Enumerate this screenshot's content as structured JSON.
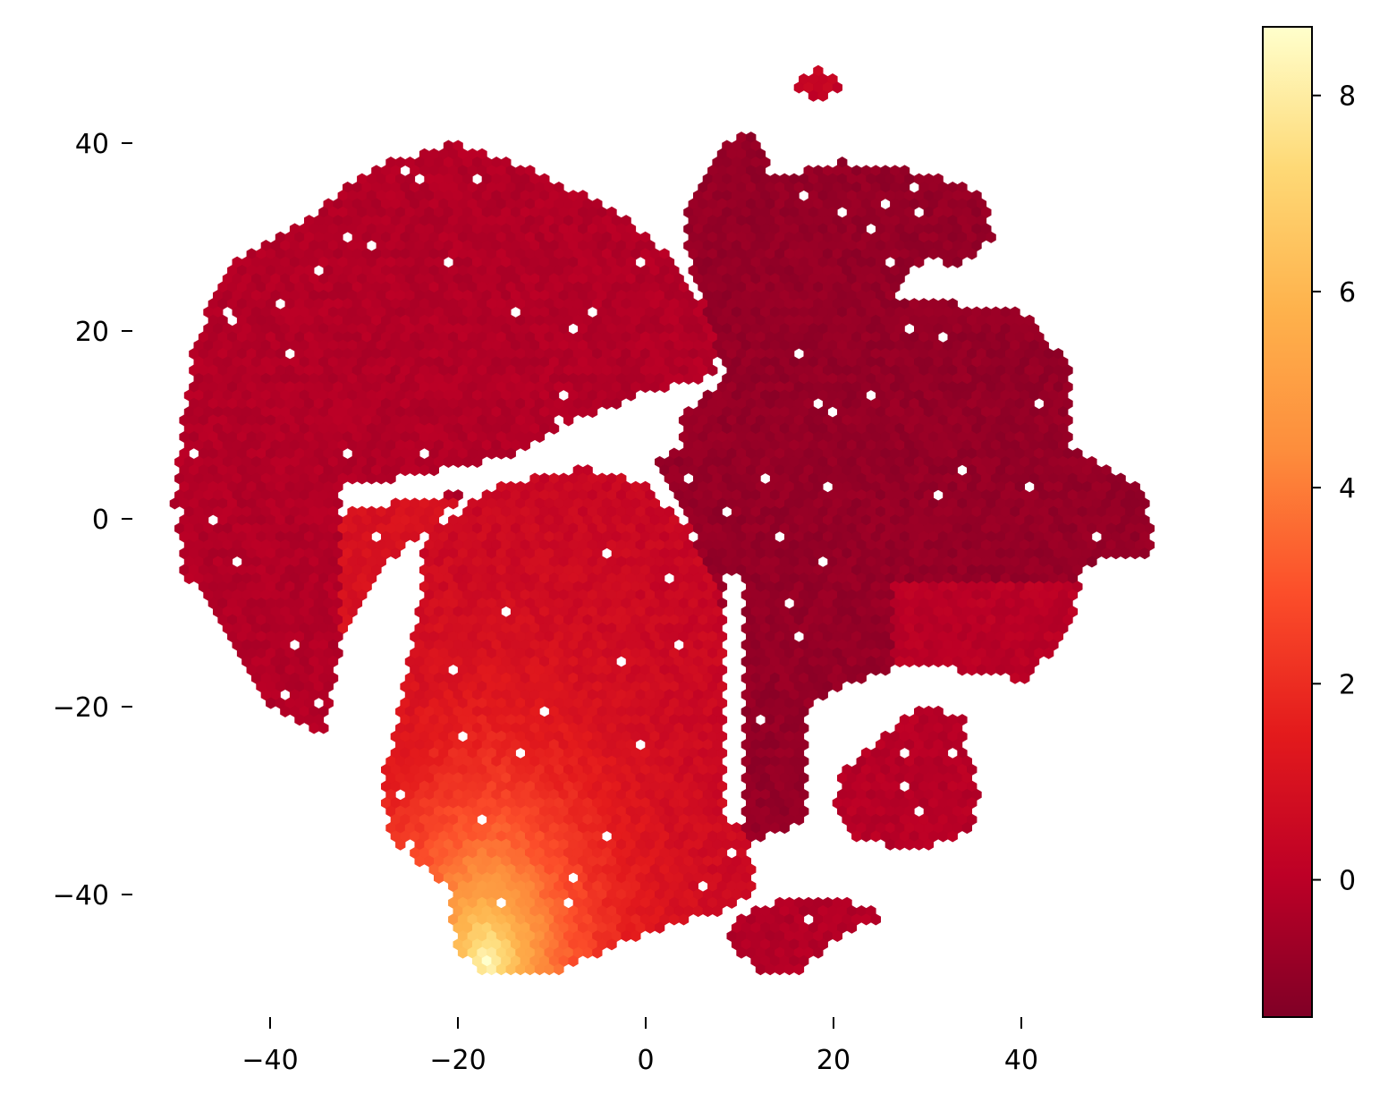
{
  "chart_data": {
    "type": "heatmap",
    "subtype": "hexbin embedding (t-SNE style)",
    "title": "",
    "xlabel": "",
    "ylabel": "",
    "xlim": [
      -58,
      56
    ],
    "ylim": [
      -54,
      53
    ],
    "x_ticks": [
      -40,
      -20,
      0,
      20,
      40
    ],
    "x_tick_labels": [
      "−40",
      "−20",
      "0",
      "20",
      "40"
    ],
    "y_ticks": [
      -40,
      -20,
      0,
      20,
      40
    ],
    "y_tick_labels": [
      "−40",
      "−20",
      "0",
      "20",
      "40"
    ],
    "grid": false,
    "legend": "none",
    "colorbar": {
      "position": "right",
      "min": -1.4,
      "max": 8.7,
      "ticks": [
        0,
        2,
        4,
        6,
        8
      ],
      "tick_labels": [
        "0",
        "2",
        "4",
        "6",
        "8"
      ],
      "colormap": "YlOrRd (reversed)",
      "colors": [
        "#800026",
        "#bd0026",
        "#e31a1c",
        "#fc4e2a",
        "#fd8d3c",
        "#feb24c",
        "#fed976",
        "#ffffcc"
      ]
    },
    "regions": [
      {
        "name": "upper-left cluster",
        "x_range": [
          -50,
          8
        ],
        "y_range": [
          -22,
          39
        ],
        "typical_value": 0.0
      },
      {
        "name": "upper-right cluster",
        "x_range": [
          4,
          54
        ],
        "y_range": [
          -15,
          41
        ],
        "typical_value": -0.8
      },
      {
        "name": "lower-middle cluster",
        "x_range": [
          -28,
          14
        ],
        "y_range": [
          -48,
          5
        ],
        "typical_value": 1.5,
        "peak": {
          "x": -15,
          "y": -46,
          "value": 8.5
        }
      },
      {
        "name": "lower-right small cluster",
        "x_range": [
          20,
          36
        ],
        "y_range": [
          -35,
          -19
        ],
        "typical_value": 0.0
      },
      {
        "name": "top island",
        "x_range": [
          16,
          21
        ],
        "y_range": [
          45,
          48
        ],
        "typical_value": 0.3
      }
    ]
  }
}
